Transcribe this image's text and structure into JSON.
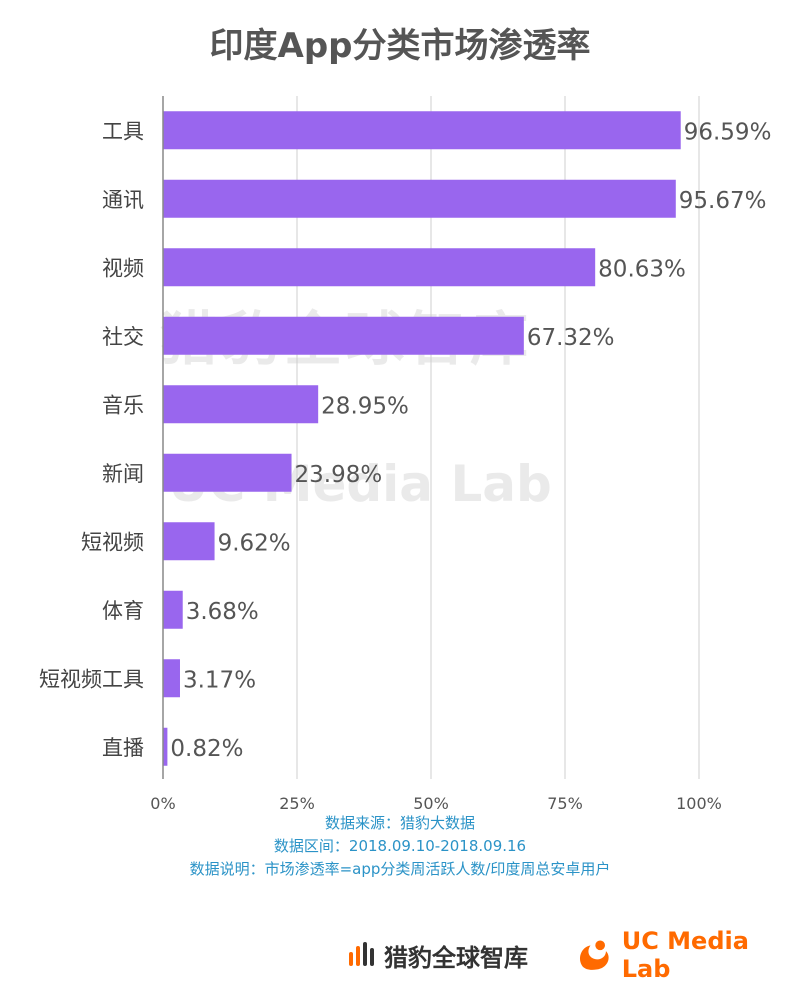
{
  "title": "印度App分类市场渗透率",
  "chart_data": {
    "type": "bar",
    "orientation": "horizontal",
    "categories": [
      "工具",
      "通讯",
      "视频",
      "社交",
      "音乐",
      "新闻",
      "短视频",
      "体育",
      "短视频工具",
      "直播"
    ],
    "values": [
      96.59,
      95.67,
      80.63,
      67.32,
      28.95,
      23.98,
      9.62,
      3.68,
      3.17,
      0.82
    ],
    "data_labels": [
      "96.59%",
      "95.67%",
      "80.63%",
      "67.32%",
      "28.95%",
      "23.98%",
      "9.62%",
      "3.68%",
      "3.17%",
      "0.82%"
    ],
    "xlim": [
      0,
      100
    ],
    "xticks": [
      "0%",
      "25%",
      "50%",
      "75%",
      "100%"
    ],
    "grid": true,
    "bar_color": "#9966ee"
  },
  "notes": {
    "source": "数据来源：猎豹大数据",
    "period": "数据区间：2018.09.10-2018.09.16",
    "definition": "数据说明：市场渗透率=app分类周活跃人数/印度周总安卓用户"
  },
  "watermarks": {
    "cheetah": "猎豹全球智库",
    "uc": "UC Media Lab"
  },
  "footer": {
    "cheetah_logo_text": "猎豹全球智库",
    "uc_logo_text": "UC Media Lab"
  },
  "colors": {
    "title": "#555555",
    "notes": "#2b93c7",
    "uc_brand": "#ff6a00"
  }
}
